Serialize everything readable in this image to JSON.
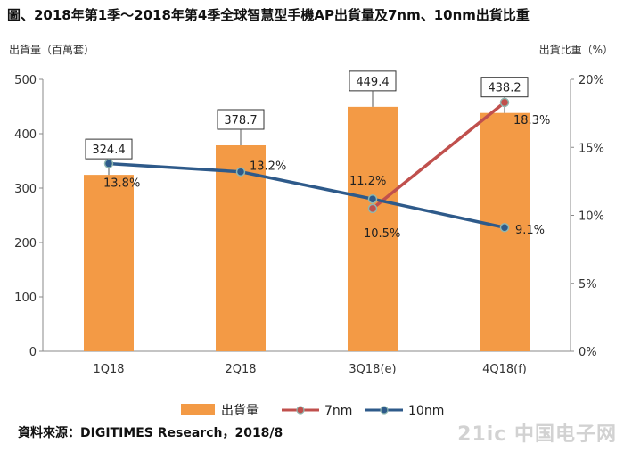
{
  "title": "圖、2018年第1季～2018年第4季全球智慧型手機AP出貨量及7nm、10nm出貨比重",
  "source": "資料來源：DIGITIMES Research，2018/8",
  "watermark": "21ic 中国电子网",
  "chart_data": {
    "type": "bar+line",
    "categories": [
      "1Q18",
      "2Q18",
      "3Q18(e)",
      "4Q18(f)"
    ],
    "left_axis": {
      "label": "出貨量（百萬套）",
      "ylim": [
        0,
        500
      ],
      "ticks": [
        "0",
        "100",
        "200",
        "300",
        "400",
        "500"
      ]
    },
    "right_axis": {
      "label": "出貨比重（%）",
      "ylim": [
        0,
        20
      ],
      "ticks": [
        "0%",
        "5%",
        "10%",
        "15%",
        "20%"
      ]
    },
    "bars": {
      "name": "出貨量",
      "values": [
        324.4,
        378.7,
        449.4,
        438.2
      ],
      "labels": [
        "324.4",
        "378.7",
        "449.4",
        "438.2"
      ],
      "color": "#F39A45"
    },
    "series": [
      {
        "name": "7nm",
        "axis": "right",
        "points": [
          [
            2,
            10.5
          ],
          [
            3,
            18.3
          ]
        ],
        "labels": [
          "10.5%",
          "18.3%"
        ],
        "color": "#C0504D"
      },
      {
        "name": "10nm",
        "axis": "right",
        "points": [
          [
            0,
            13.8
          ],
          [
            1,
            13.2
          ],
          [
            2,
            11.2
          ],
          [
            3,
            9.1
          ]
        ],
        "labels": [
          "13.8%",
          "13.2%",
          "11.2%",
          "9.1%"
        ],
        "color": "#2E5A8A"
      }
    ],
    "legend": {
      "placement": "bottom"
    },
    "grid": false
  }
}
